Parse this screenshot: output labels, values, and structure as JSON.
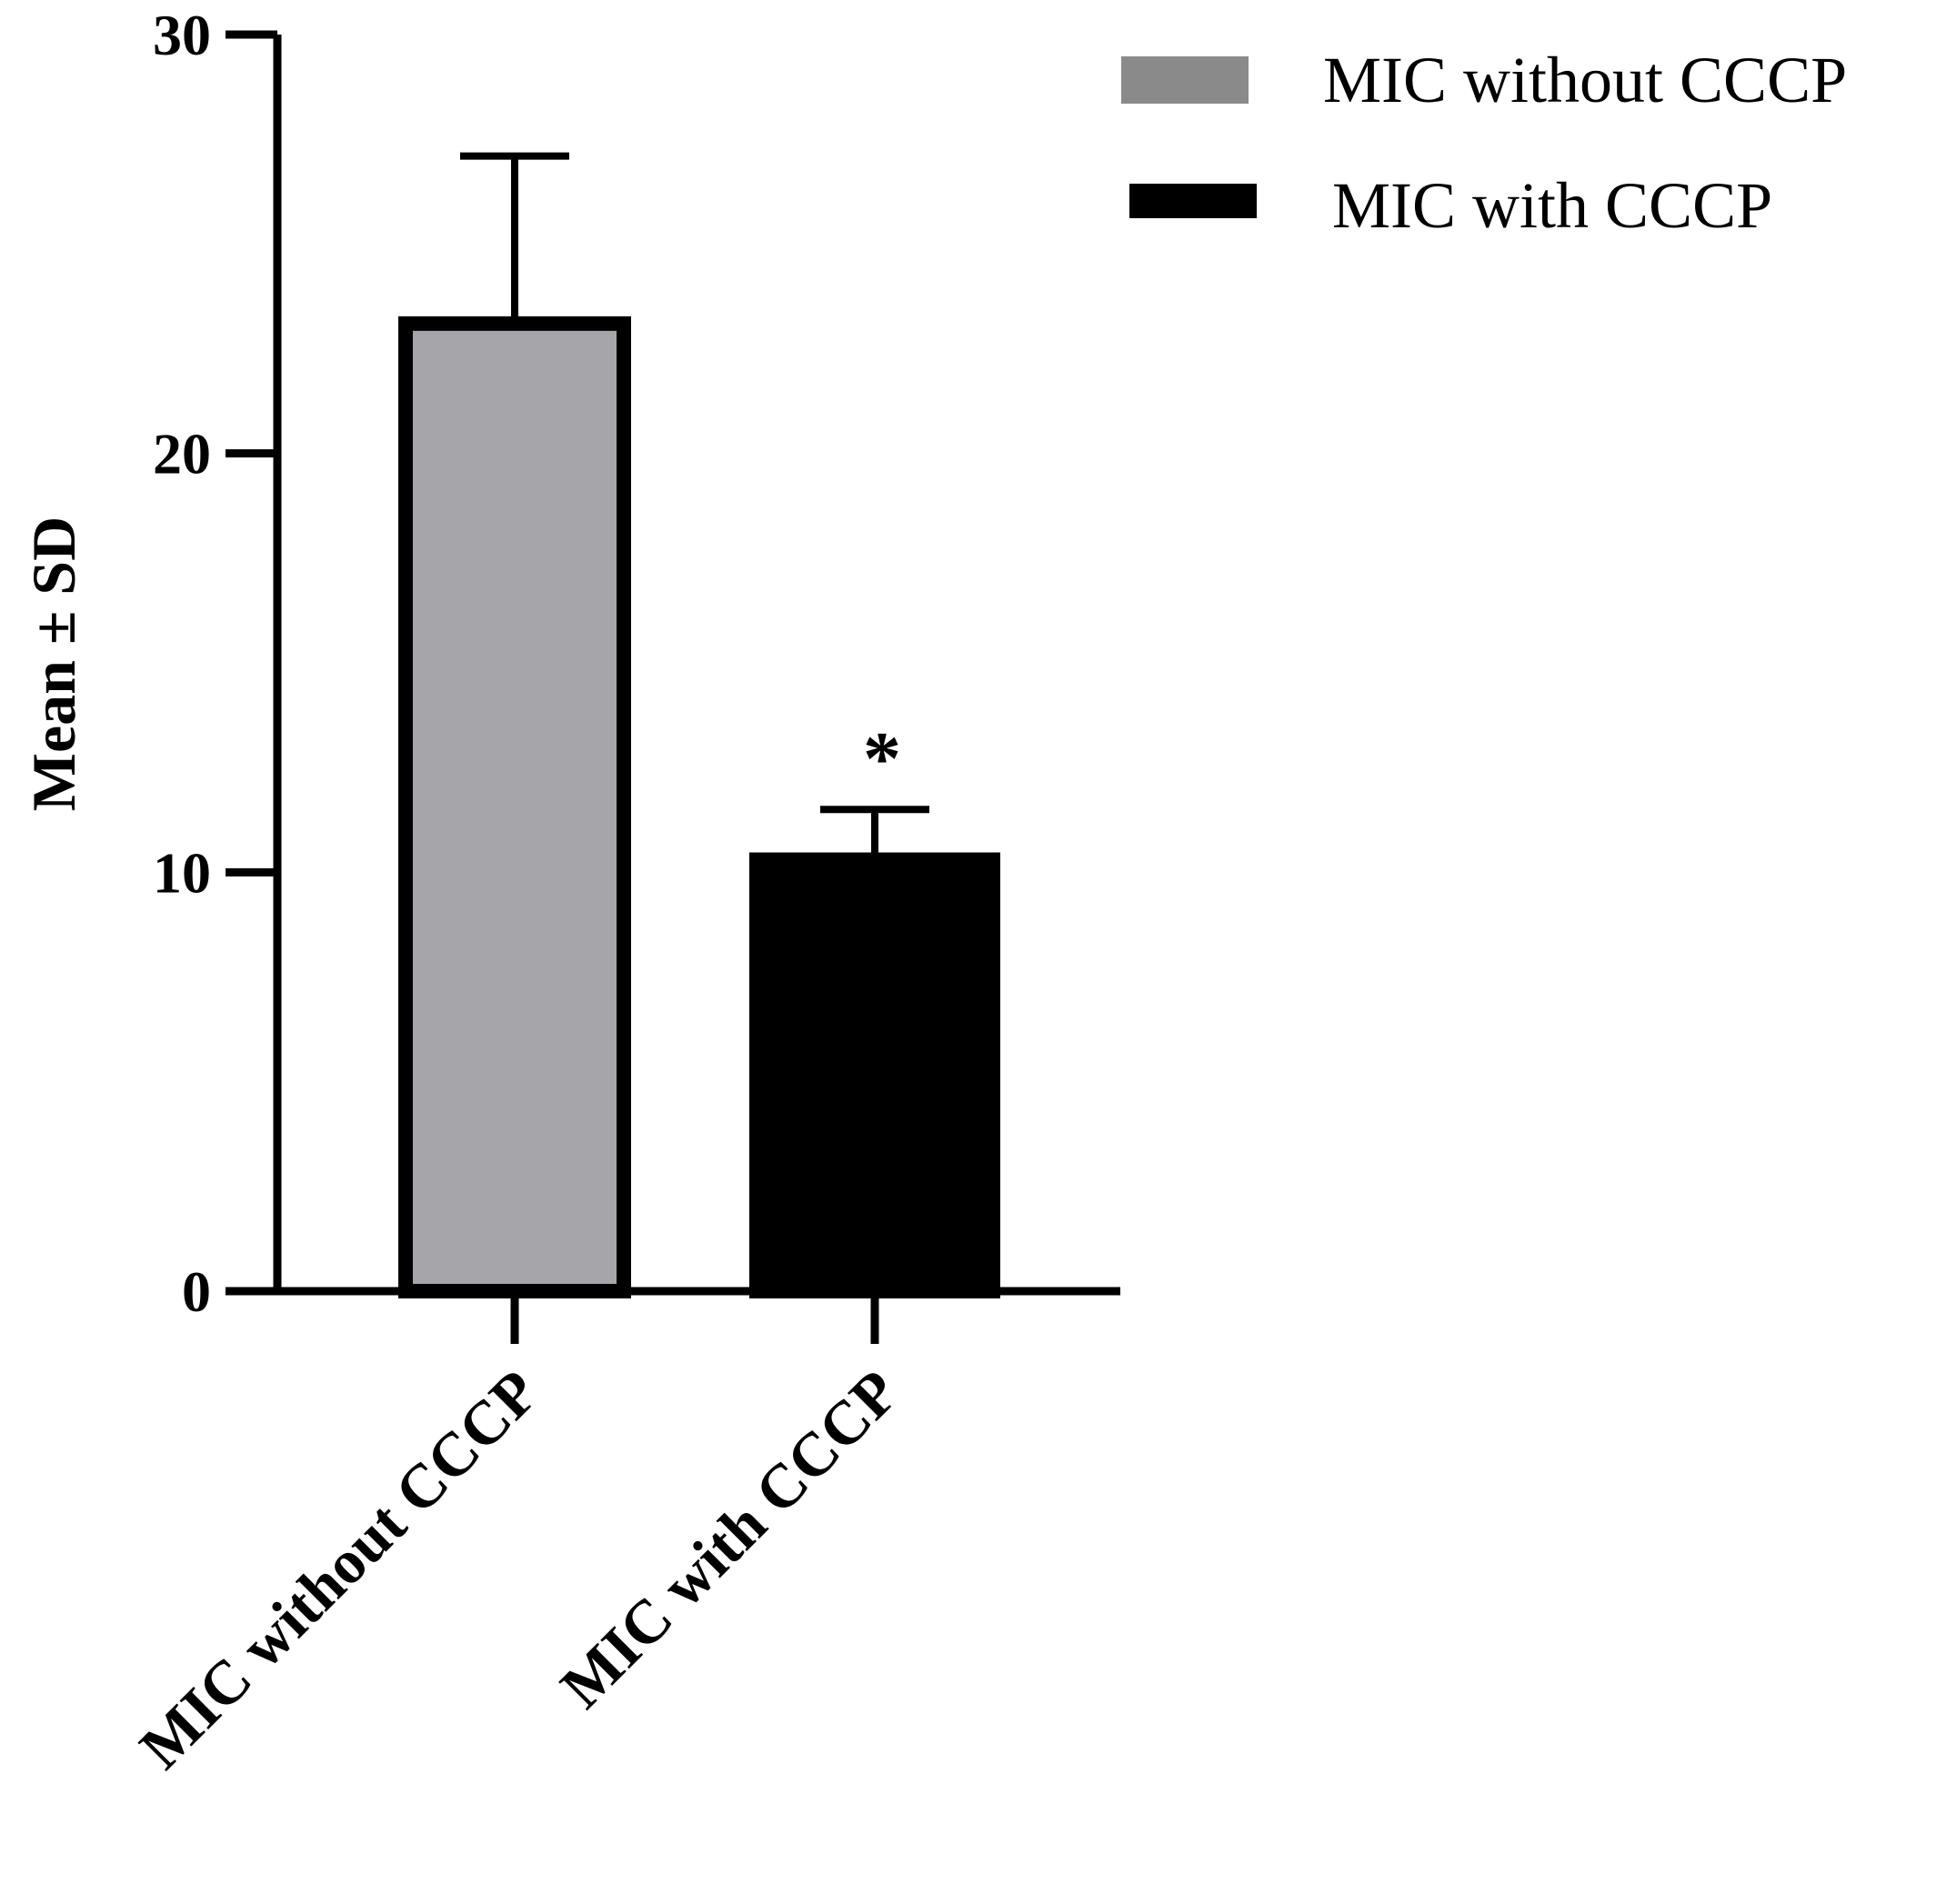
{
  "chart_data": {
    "type": "bar",
    "categories": [
      "MIC without CCCP",
      "MIC with CCCP"
    ],
    "values": [
      23.1,
      10.3
    ],
    "error_sd": [
      4.0,
      1.2
    ],
    "significance": [
      "",
      "*"
    ],
    "colors": [
      "#a6a6aa",
      "#000000"
    ],
    "title": "",
    "xlabel": "",
    "ylabel": "Mean ± SD",
    "ylim": [
      0,
      30
    ],
    "yticks": [
      "0",
      "10",
      "20",
      "30"
    ],
    "grid": false,
    "legend": {
      "position": "top-right",
      "entries": [
        {
          "label": "MIC without CCCP",
          "color": "#8a8a8a"
        },
        {
          "label": "MIC with CCCP",
          "color": "#000000"
        }
      ]
    }
  }
}
